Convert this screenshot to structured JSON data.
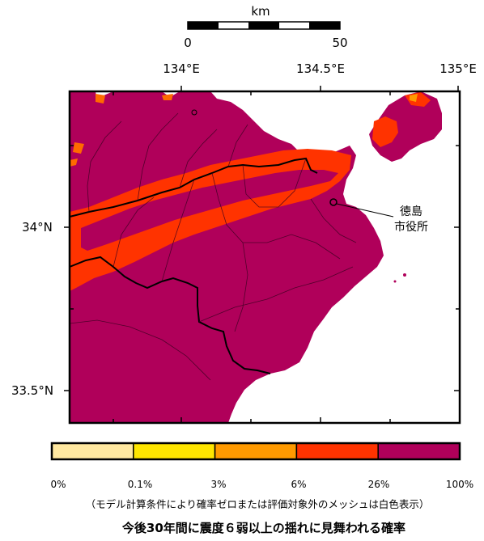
{
  "scale_bar": {
    "unit": "km",
    "start": "0",
    "end": "50"
  },
  "lon_labels": [
    "134°E",
    "134.5°E",
    "135°E"
  ],
  "lat_labels": [
    "34°N",
    "33.5°N"
  ],
  "city_label": [
    "徳島",
    "市役所"
  ],
  "legend": {
    "colors": [
      "#ffe8a0",
      "#ffe600",
      "#ff9a00",
      "#ff3300",
      "#b0005a"
    ],
    "ticks": [
      "0%",
      "0.1%",
      "3%",
      "6%",
      "26%",
      "100%"
    ]
  },
  "note": "（モデル計算条件により確率ゼロまたは評価対象外のメッシュは白色表示）",
  "caption": "今後30年間に震度６弱以上の揺れに見舞われる確率",
  "colors": {
    "purple": "#b0005a",
    "red": "#ff3300",
    "orange": "#ff9a00",
    "pref_border": "#000000",
    "muni_border": "#3a0020"
  }
}
